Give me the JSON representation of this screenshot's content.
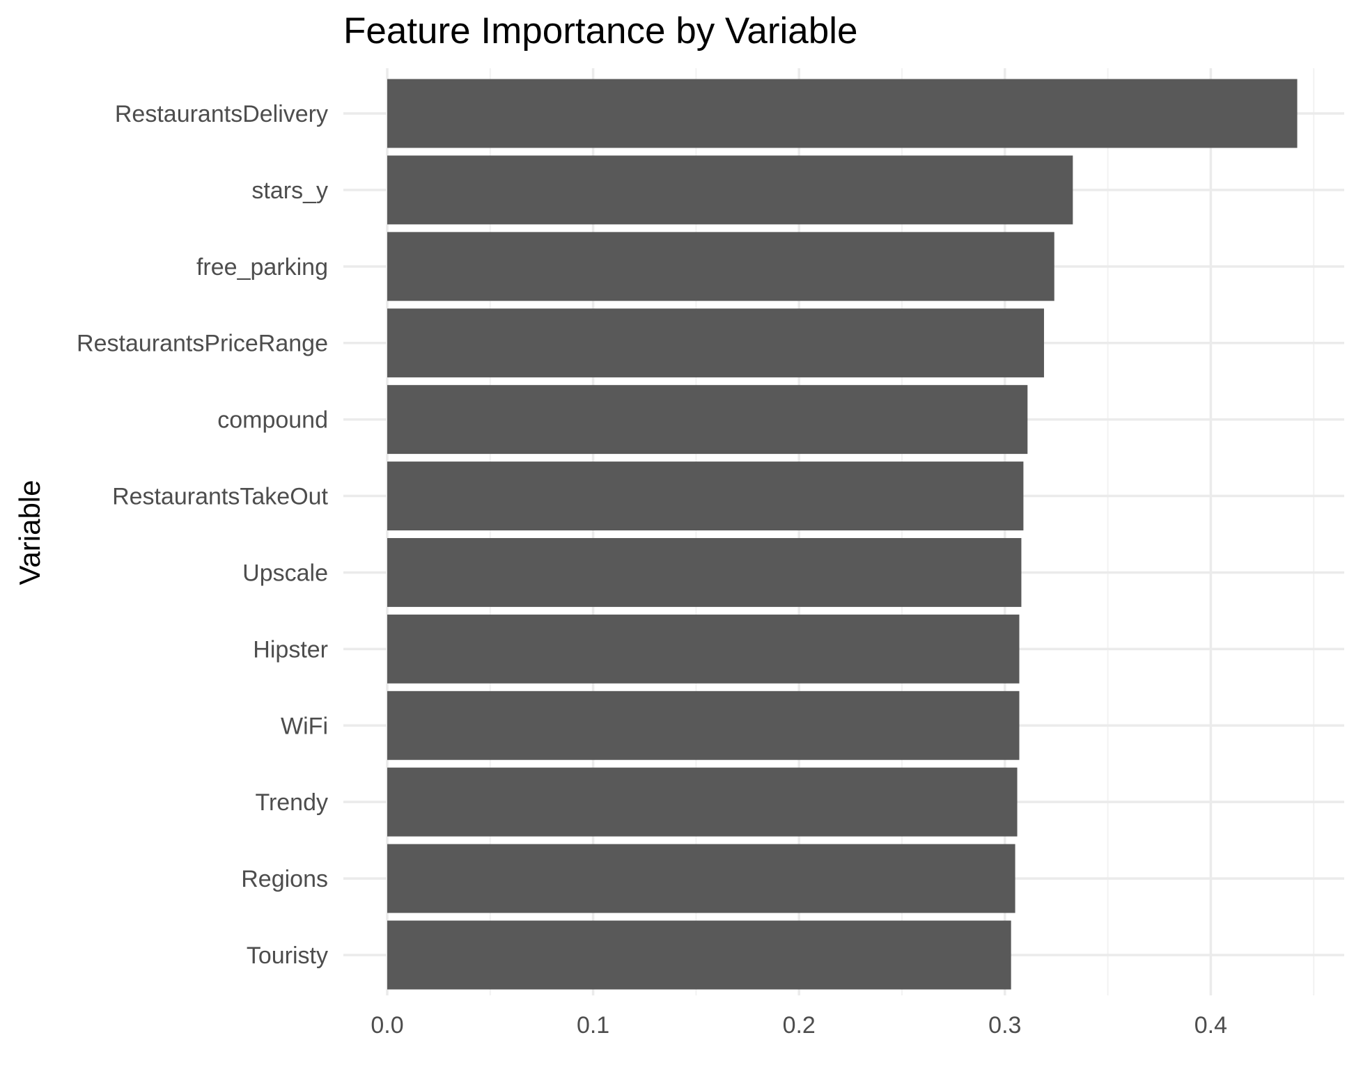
{
  "chart_data": {
    "type": "bar",
    "orientation": "horizontal",
    "title": "Feature Importance by Variable",
    "xlabel": "",
    "ylabel": "Variable",
    "categories": [
      "RestaurantsDelivery",
      "stars_y",
      "free_parking",
      "RestaurantsPriceRange",
      "compound",
      "RestaurantsTakeOut",
      "Upscale",
      "Hipster",
      "WiFi",
      "Trendy",
      "Regions",
      "Touristy"
    ],
    "values": [
      0.442,
      0.333,
      0.324,
      0.319,
      0.311,
      0.309,
      0.308,
      0.307,
      0.307,
      0.306,
      0.305,
      0.303
    ],
    "xlim": [
      0,
      0.45
    ],
    "xticks": [
      0.0,
      0.1,
      0.2,
      0.3,
      0.4
    ],
    "xtick_labels": [
      "0.0",
      "0.1",
      "0.2",
      "0.3",
      "0.4"
    ],
    "grid": true,
    "legend": "none",
    "bar_color": "#595959",
    "gridline_color": "#ebebeb"
  }
}
